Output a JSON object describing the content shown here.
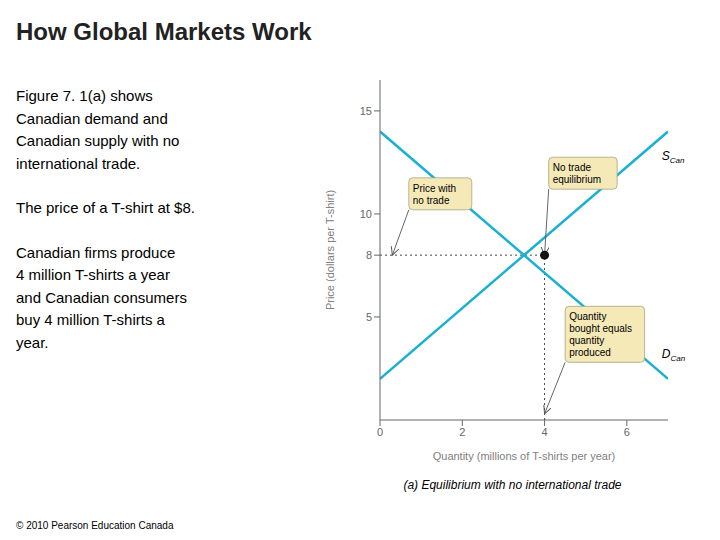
{
  "chart_data": {
    "type": "line",
    "title": "How Global Markets Work",
    "subtitle": "(a) Equilibrium with no international trade",
    "notes": [
      "Figure 7. 1(a) shows\nCanadian demand and\nCanadian supply with no\ninternational trade.",
      "The price of a T-shirt at $8.",
      "Canadian firms produce\n4 million T-shirts a year\nand Canadian consumers\nbuy 4 million T-shirts a\nyear."
    ],
    "copyright": "© 2010 Pearson Education Canada",
    "xlabel": "Quantity (millions of T-shirts per year)",
    "ylabel": "Price (dollars per T-shirt)",
    "xlim": [
      0,
      7
    ],
    "ylim": [
      0,
      16.5
    ],
    "xticks": [
      0,
      2,
      4,
      6
    ],
    "yticks": [
      5,
      8,
      10,
      15
    ],
    "series": [
      {
        "type": "line",
        "color": "#1ab0d0",
        "x": [
          0,
          7
        ],
        "values": [
          2,
          14
        ]
      },
      {
        "type": "line",
        "color": "#1ab0d0",
        "x": [
          0,
          7
        ],
        "values": [
          14,
          2
        ]
      },
      {
        "type": "scatter",
        "color": "#111111",
        "x": [
          4
        ],
        "values": [
          8
        ]
      }
    ],
    "curve_labels": [
      {
        "text": "S",
        "subscript": "Can",
        "x": 6.85,
        "y": 12.8
      },
      {
        "text": "D",
        "subscript": "Can",
        "x": 6.85,
        "y": 3.2
      }
    ],
    "annotations": [
      {
        "text": "No trade\nequilibrium",
        "x": 4.0,
        "y": 8.0,
        "text_x": 4.1,
        "text_y": 11.2
      },
      {
        "text": "Price with\nno trade",
        "x": 0.3,
        "y": 8.0,
        "text_x": 0.7,
        "text_y": 10.2
      },
      {
        "text": "Quantity\nbought equals\nquantity\nproduced",
        "x": 4.0,
        "y": 0.3,
        "text_x": 4.5,
        "text_y": 2.8
      }
    ]
  }
}
